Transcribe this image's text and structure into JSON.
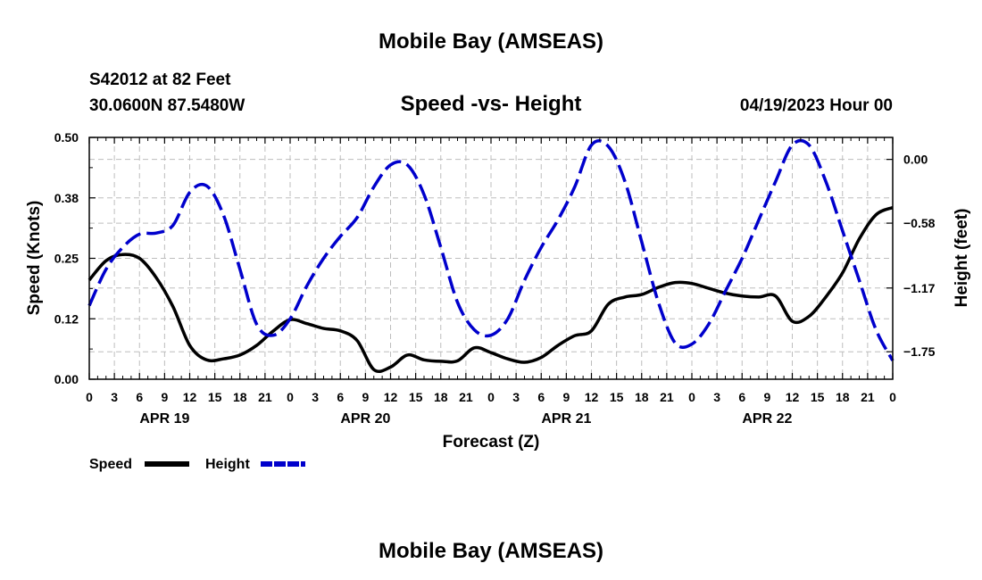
{
  "title": "Mobile Bay (AMSEAS)",
  "footer_title": "Mobile Bay (AMSEAS)",
  "station_line": "S42012 at 82 Feet",
  "coords_line": "30.0600N  87.5480W",
  "subtitle": "Speed -vs- Height",
  "datetime": "04/19/2023 Hour 00",
  "chart_data": {
    "type": "line",
    "title": "Speed -vs- Height",
    "xlabel": "Forecast (Z)",
    "ylabel": "Speed (Knots)",
    "y2label": "Height (feet)",
    "xlim": [
      0,
      96
    ],
    "ylim": [
      0,
      0.5
    ],
    "y2lim": [
      -2.0,
      0.2
    ],
    "grid": true,
    "legend_position": "bottom-left",
    "x_ticks": [
      0,
      3,
      6,
      9,
      12,
      15,
      18,
      21,
      24,
      27,
      30,
      33,
      36,
      39,
      42,
      45,
      48,
      51,
      54,
      57,
      60,
      63,
      66,
      69,
      72,
      75,
      78,
      81,
      84,
      87,
      90,
      93,
      96
    ],
    "x_tick_labels": [
      "0",
      "3",
      "6",
      "9",
      "12",
      "15",
      "18",
      "21",
      "0",
      "3",
      "6",
      "9",
      "12",
      "15",
      "18",
      "21",
      "0",
      "3",
      "6",
      "9",
      "12",
      "15",
      "18",
      "21",
      "0",
      "3",
      "6",
      "9",
      "12",
      "15",
      "18",
      "21",
      "0"
    ],
    "day_labels": [
      {
        "hour": 9,
        "label": "APR 19"
      },
      {
        "hour": 33,
        "label": "APR 20"
      },
      {
        "hour": 57,
        "label": "APR 21"
      },
      {
        "hour": 81,
        "label": "APR 22"
      }
    ],
    "y_ticks": [
      0.0,
      0.125,
      0.25,
      0.375,
      0.5
    ],
    "y_tick_labels": [
      "0.00",
      "0.12",
      "0.25",
      "0.38",
      "0.50"
    ],
    "y2_ticks": [
      0.0,
      -0.58,
      -1.17,
      -1.75
    ],
    "y2_tick_labels": [
      "0.00",
      "−0.58",
      "−1.17",
      "−1.75"
    ],
    "series": [
      {
        "name": "Speed",
        "axis": "left",
        "color": "#000000",
        "dash": "solid",
        "x": [
          0,
          2,
          4,
          6,
          8,
          10,
          12,
          14,
          16,
          18,
          20,
          22,
          24,
          26,
          28,
          30,
          32,
          34,
          36,
          38,
          40,
          42,
          44,
          46,
          48,
          50,
          52,
          54,
          56,
          58,
          60,
          62,
          64,
          66,
          68,
          70,
          72,
          74,
          76,
          78,
          80,
          82,
          84,
          86,
          88,
          90,
          92,
          94,
          96
        ],
        "y": [
          0.205,
          0.245,
          0.258,
          0.25,
          0.21,
          0.15,
          0.07,
          0.04,
          0.042,
          0.05,
          0.07,
          0.1,
          0.123,
          0.115,
          0.105,
          0.1,
          0.08,
          0.02,
          0.025,
          0.05,
          0.04,
          0.037,
          0.038,
          0.065,
          0.055,
          0.042,
          0.035,
          0.045,
          0.07,
          0.09,
          0.1,
          0.155,
          0.17,
          0.175,
          0.19,
          0.2,
          0.198,
          0.188,
          0.178,
          0.172,
          0.17,
          0.172,
          0.12,
          0.13,
          0.17,
          0.22,
          0.29,
          0.34,
          0.355
        ]
      },
      {
        "name": "Height",
        "axis": "right",
        "color": "#0000cc",
        "dash": "dashed",
        "x": [
          0,
          2,
          4,
          6,
          8,
          10,
          12,
          14,
          16,
          18,
          20,
          22,
          24,
          26,
          28,
          30,
          32,
          34,
          36,
          38,
          40,
          42,
          44,
          46,
          48,
          50,
          52,
          54,
          56,
          58,
          60,
          62,
          64,
          66,
          68,
          70,
          72,
          74,
          76,
          78,
          80,
          82,
          84,
          86,
          88,
          90,
          92,
          94,
          96
        ],
        "y": [
          -1.33,
          -1.0,
          -0.8,
          -0.68,
          -0.67,
          -0.6,
          -0.3,
          -0.24,
          -0.5,
          -1.0,
          -1.5,
          -1.6,
          -1.45,
          -1.15,
          -0.9,
          -0.7,
          -0.53,
          -0.25,
          -0.05,
          -0.05,
          -0.32,
          -0.8,
          -1.3,
          -1.55,
          -1.6,
          -1.45,
          -1.1,
          -0.8,
          -0.55,
          -0.25,
          0.13,
          0.12,
          -0.2,
          -0.75,
          -1.3,
          -1.67,
          -1.68,
          -1.5,
          -1.2,
          -0.9,
          -0.55,
          -0.2,
          0.13,
          0.13,
          -0.2,
          -0.65,
          -1.1,
          -1.55,
          -1.83
        ]
      }
    ]
  }
}
